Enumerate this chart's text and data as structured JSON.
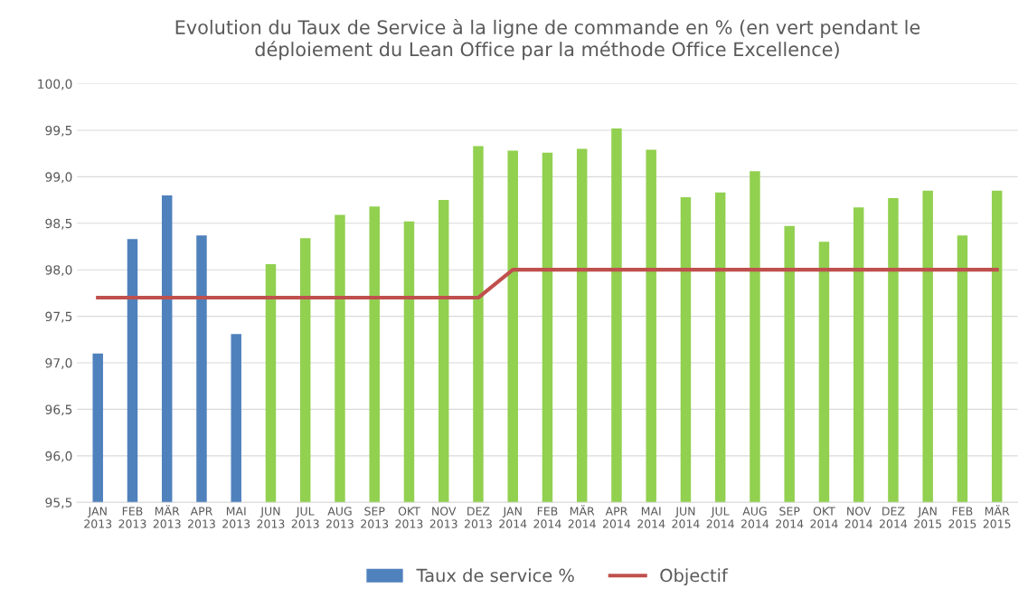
{
  "chart_data": {
    "type": "bar",
    "title": "Evolution du Taux de Service à la ligne de commande en % (en vert pendant le\ndéploiement du Lean Office par la méthode Office Excellence)",
    "categories": [
      "JAN\n2013",
      "FEB\n2013",
      "MÄR\n2013",
      "APR\n2013",
      "MAI\n2013",
      "JUN\n2013",
      "JUL\n2013",
      "AUG\n2013",
      "SEP\n2013",
      "OKT\n2013",
      "NOV\n2013",
      "DEZ\n2013",
      "JAN\n2014",
      "FEB\n2014",
      "MÄR\n2014",
      "APR\n2014",
      "MAI\n2014",
      "JUN\n2014",
      "JUL\n2014",
      "AUG\n2014",
      "SEP\n2014",
      "OKT\n2014",
      "NOV\n2014",
      "DEZ\n2014",
      "JAN\n2015",
      "FEB\n2015",
      "MÄR\n2015"
    ],
    "series": [
      {
        "name": "Taux de service %",
        "color": "#4f81bd",
        "colors": [
          "#4f81bd",
          "#4f81bd",
          "#4f81bd",
          "#4f81bd",
          "#4f81bd",
          "#92d050",
          "#92d050",
          "#92d050",
          "#92d050",
          "#92d050",
          "#92d050",
          "#92d050",
          "#92d050",
          "#92d050",
          "#92d050",
          "#92d050",
          "#92d050",
          "#92d050",
          "#92d050",
          "#92d050",
          "#92d050",
          "#92d050",
          "#92d050",
          "#92d050",
          "#92d050",
          "#92d050",
          "#92d050"
        ],
        "values": [
          97.1,
          98.33,
          98.8,
          98.37,
          97.31,
          98.06,
          98.34,
          98.59,
          98.68,
          98.52,
          98.75,
          99.33,
          99.28,
          99.26,
          99.3,
          99.52,
          99.29,
          98.78,
          98.83,
          99.06,
          98.47,
          98.3,
          98.67,
          98.77,
          98.85,
          98.37,
          98.85
        ]
      },
      {
        "name": "Objectif",
        "type": "line",
        "color": "#c0504d",
        "values": [
          97.7,
          97.7,
          97.7,
          97.7,
          97.7,
          97.7,
          97.7,
          97.7,
          97.7,
          97.7,
          97.7,
          97.7,
          98.0,
          98.0,
          98.0,
          98.0,
          98.0,
          98.0,
          98.0,
          98.0,
          98.0,
          98.0,
          98.0,
          98.0,
          98.0,
          98.0,
          98.0
        ]
      }
    ],
    "ylim": [
      95.5,
      100.0
    ],
    "yticks": [
      {
        "value": 95.5,
        "label": "95,5"
      },
      {
        "value": 96.0,
        "label": "96,0"
      },
      {
        "value": 96.5,
        "label": "96,5"
      },
      {
        "value": 97.0,
        "label": "97,0"
      },
      {
        "value": 97.5,
        "label": "97,5"
      },
      {
        "value": 98.0,
        "label": "98,0"
      },
      {
        "value": 98.5,
        "label": "98,5"
      },
      {
        "value": 99.0,
        "label": "99,0"
      },
      {
        "value": 99.5,
        "label": "99,5"
      },
      {
        "value": 100.0,
        "label": "100,0"
      }
    ],
    "grid": "y",
    "legend": "bottom"
  }
}
